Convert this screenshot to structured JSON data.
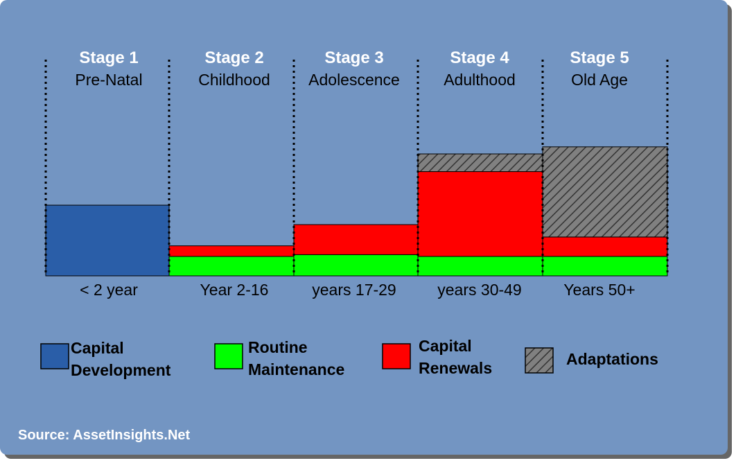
{
  "chart_data": {
    "type": "bar",
    "subtype": "stacked",
    "title": "",
    "xlabel": "",
    "ylabel": "",
    "ylim": [
      0,
      100
    ],
    "grid": false,
    "categories": [
      {
        "stage": "Stage 1",
        "name": "Pre-Natal",
        "period": "< 2 year"
      },
      {
        "stage": "Stage 2",
        "name": "Childhood",
        "period": "Year 2-16"
      },
      {
        "stage": "Stage 3",
        "name": "Adolescence",
        "period": "years 17-29"
      },
      {
        "stage": "Stage 4",
        "name": "Adulthood",
        "period": "years 30-49"
      },
      {
        "stage": "Stage 5",
        "name": "Old Age",
        "period": "Years 50+"
      }
    ],
    "series": [
      {
        "key": "capital",
        "name_lines": [
          "Capital",
          "Development"
        ],
        "color": "#2a5ea8",
        "pattern": "none",
        "values": [
          40,
          0,
          0,
          0,
          0
        ]
      },
      {
        "key": "routine",
        "name_lines": [
          "Routine",
          "Maintenance"
        ],
        "color": "#00ff00",
        "pattern": "none",
        "values": [
          0,
          11,
          12,
          11,
          11
        ]
      },
      {
        "key": "renewals",
        "name_lines": [
          "Capital",
          "Renewals"
        ],
        "color": "#ff0000",
        "pattern": "none",
        "values": [
          0,
          6,
          17,
          48,
          11
        ]
      },
      {
        "key": "adaptations",
        "name_lines": [
          "Adaptations"
        ],
        "color": "#808080",
        "pattern": "hatch",
        "values": [
          0,
          0,
          0,
          10,
          51
        ]
      }
    ],
    "legend_position": "bottom"
  },
  "source": "Source: AssetInsights.Net"
}
